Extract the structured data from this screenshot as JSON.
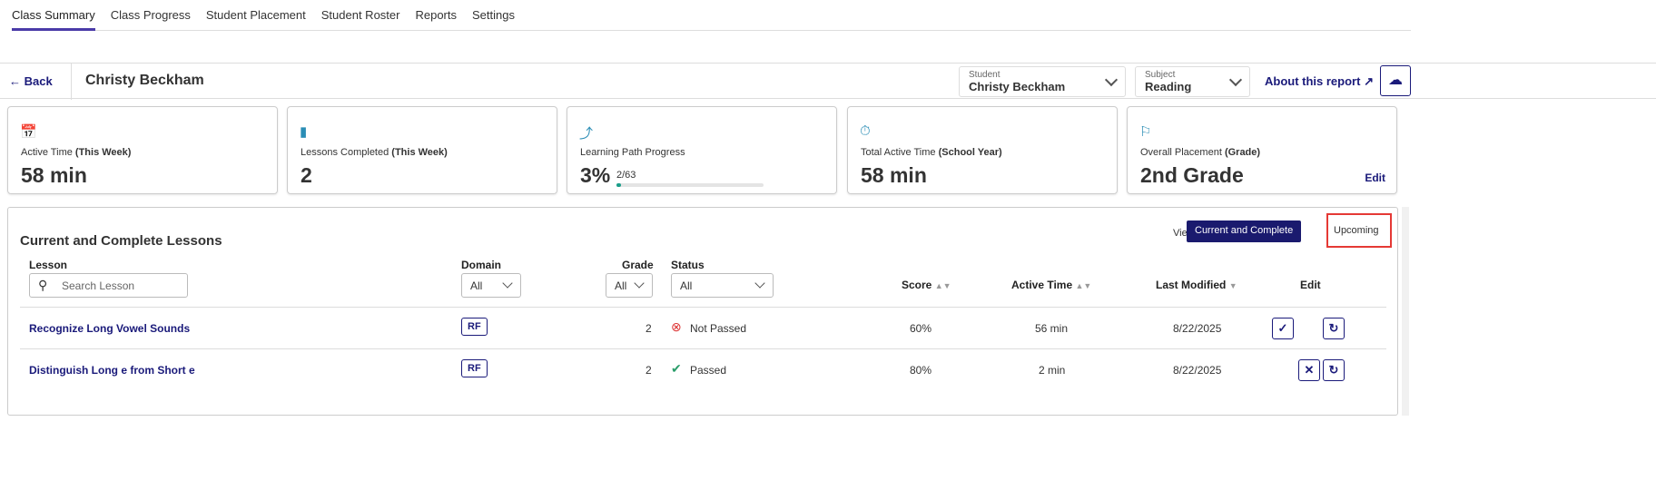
{
  "nav": {
    "tabs": [
      "Class Summary",
      "Class Progress",
      "Student Placement",
      "Student Roster",
      "Reports",
      "Settings"
    ]
  },
  "header": {
    "back": "Back",
    "student_name": "Christy Beckham",
    "student_label": "Student",
    "student_value": "Christy Beckham",
    "subject_label": "Subject",
    "subject_value": "Reading",
    "about": "About this report"
  },
  "cards": [
    {
      "label": "Active Time",
      "qual": "(This Week)",
      "value": "58 min",
      "icon": "calendar-icon"
    },
    {
      "label": "Lessons Completed",
      "qual": "(This Week)",
      "value": "2",
      "icon": "book-icon"
    },
    {
      "label": "Learning Path Progress",
      "qual": "",
      "value": "3%",
      "sub": "2/63",
      "progress": 0.03,
      "icon": "path-icon"
    },
    {
      "label": "Total Active Time",
      "qual": "(School Year)",
      "value": "58 min",
      "icon": "timer-icon"
    },
    {
      "label": "Overall Placement",
      "qual": "(Grade)",
      "value": "2nd Grade",
      "edit": "Edit",
      "icon": "flag-icon"
    }
  ],
  "lessons": {
    "title": "Current and Complete Lessons",
    "view_by": "View By",
    "view_current": "Current and Complete",
    "view_upcoming": "Upcoming",
    "columns": {
      "lesson": "Lesson",
      "domain": "Domain",
      "grade": "Grade",
      "status": "Status",
      "score": "Score",
      "active_time": "Active Time",
      "last_modified": "Last Modified",
      "edit": "Edit"
    },
    "search_placeholder": "Search Lesson",
    "domain_filter": "All",
    "grade_filter": "All",
    "status_filter": "All",
    "rows": [
      {
        "lesson": "Recognize Long Vowel Sounds",
        "domain": "RF",
        "grade": "2",
        "status": "Not Passed",
        "score": "60%",
        "active_time": "56 min",
        "last_modified": "8/22/2025"
      },
      {
        "lesson": "Distinguish Long e from Short e",
        "domain": "RF",
        "grade": "2",
        "status": "Passed",
        "score": "80%",
        "active_time": "2 min",
        "last_modified": "8/22/2025"
      }
    ]
  },
  "colors": {
    "accent": "#1a1a7a",
    "tab_underline": "#4a3aa8",
    "icon": "#2a8db5",
    "highlight": "#e53935"
  }
}
